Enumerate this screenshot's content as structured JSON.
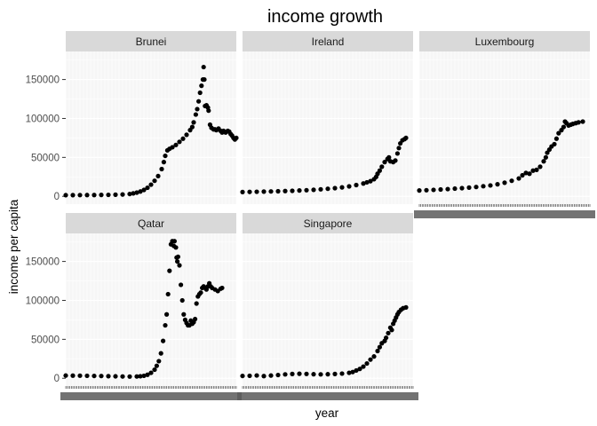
{
  "chart_data": {
    "type": "scatter",
    "title": "income growth",
    "xlabel": "year",
    "ylabel": "income per capita",
    "yticks": [
      0,
      50000,
      100000,
      150000
    ],
    "ytick_labels": [
      "0",
      "50000",
      "100000",
      "150000"
    ],
    "ylim": [
      -10000,
      186000
    ],
    "xlim": [
      1800,
      2040
    ],
    "grid": true,
    "panels": [
      {
        "name": "Brunei",
        "points": [
          [
            1800,
            1500
          ],
          [
            1810,
            1550
          ],
          [
            1820,
            1600
          ],
          [
            1830,
            1650
          ],
          [
            1840,
            1700
          ],
          [
            1850,
            1800
          ],
          [
            1860,
            1900
          ],
          [
            1870,
            2100
          ],
          [
            1880,
            2400
          ],
          [
            1890,
            3000
          ],
          [
            1895,
            3800
          ],
          [
            1900,
            4800
          ],
          [
            1905,
            6200
          ],
          [
            1910,
            8200
          ],
          [
            1915,
            11000
          ],
          [
            1920,
            15000
          ],
          [
            1925,
            20000
          ],
          [
            1930,
            26000
          ],
          [
            1935,
            35000
          ],
          [
            1938,
            44000
          ],
          [
            1940,
            52000
          ],
          [
            1943,
            59000
          ],
          [
            1946,
            61000
          ],
          [
            1950,
            63000
          ],
          [
            1955,
            66000
          ],
          [
            1960,
            70000
          ],
          [
            1965,
            74000
          ],
          [
            1970,
            79000
          ],
          [
            1975,
            85000
          ],
          [
            1978,
            89000
          ],
          [
            1980,
            95000
          ],
          [
            1983,
            105000
          ],
          [
            1985,
            112000
          ],
          [
            1987,
            122000
          ],
          [
            1989,
            133000
          ],
          [
            1991,
            142000
          ],
          [
            1993,
            150000
          ],
          [
            1994,
            166000
          ],
          [
            1995,
            150000
          ],
          [
            1996,
            116000
          ],
          [
            1998,
            117000
          ],
          [
            2000,
            114000
          ],
          [
            2001,
            110000
          ],
          [
            2003,
            92000
          ],
          [
            2005,
            88000
          ],
          [
            2008,
            86000
          ],
          [
            2010,
            86000
          ],
          [
            2012,
            85000
          ],
          [
            2015,
            87000
          ],
          [
            2018,
            84000
          ],
          [
            2020,
            82000
          ],
          [
            2022,
            84000
          ],
          [
            2025,
            82000
          ],
          [
            2028,
            84000
          ],
          [
            2030,
            83000
          ],
          [
            2032,
            80000
          ],
          [
            2034,
            78000
          ],
          [
            2036,
            75000
          ],
          [
            2038,
            73000
          ],
          [
            2040,
            75000
          ]
        ]
      },
      {
        "name": "Ireland",
        "points": [
          [
            1800,
            5500
          ],
          [
            1810,
            5700
          ],
          [
            1820,
            5900
          ],
          [
            1830,
            6100
          ],
          [
            1840,
            6300
          ],
          [
            1850,
            6500
          ],
          [
            1860,
            6800
          ],
          [
            1870,
            7100
          ],
          [
            1880,
            7500
          ],
          [
            1890,
            7900
          ],
          [
            1900,
            8400
          ],
          [
            1910,
            9000
          ],
          [
            1920,
            9700
          ],
          [
            1930,
            10500
          ],
          [
            1940,
            11500
          ],
          [
            1950,
            12800
          ],
          [
            1960,
            14500
          ],
          [
            1970,
            16500
          ],
          [
            1975,
            18000
          ],
          [
            1980,
            19500
          ],
          [
            1985,
            22000
          ],
          [
            1988,
            25000
          ],
          [
            1990,
            29000
          ],
          [
            1993,
            33000
          ],
          [
            1996,
            38000
          ],
          [
            2000,
            44000
          ],
          [
            2004,
            48000
          ],
          [
            2006,
            50000
          ],
          [
            2008,
            45000
          ],
          [
            2012,
            44000
          ],
          [
            2015,
            46000
          ],
          [
            2018,
            55000
          ],
          [
            2020,
            62000
          ],
          [
            2022,
            68000
          ],
          [
            2025,
            72000
          ],
          [
            2028,
            73500
          ],
          [
            2030,
            75000
          ]
        ]
      },
      {
        "name": "Luxembourg",
        "points": [
          [
            1800,
            7500
          ],
          [
            1810,
            7900
          ],
          [
            1820,
            8300
          ],
          [
            1830,
            8800
          ],
          [
            1840,
            9300
          ],
          [
            1850,
            9900
          ],
          [
            1860,
            10500
          ],
          [
            1870,
            11200
          ],
          [
            1880,
            12000
          ],
          [
            1890,
            13000
          ],
          [
            1900,
            14000
          ],
          [
            1910,
            15500
          ],
          [
            1920,
            17500
          ],
          [
            1930,
            20000
          ],
          [
            1940,
            23000
          ],
          [
            1945,
            27000
          ],
          [
            1950,
            30000
          ],
          [
            1955,
            29000
          ],
          [
            1960,
            33000
          ],
          [
            1965,
            34000
          ],
          [
            1970,
            38000
          ],
          [
            1975,
            45000
          ],
          [
            1978,
            50000
          ],
          [
            1980,
            56000
          ],
          [
            1983,
            60000
          ],
          [
            1986,
            64000
          ],
          [
            1990,
            67000
          ],
          [
            1993,
            74000
          ],
          [
            1996,
            81000
          ],
          [
            2000,
            85000
          ],
          [
            2003,
            89000
          ],
          [
            2005,
            96000
          ],
          [
            2007,
            94000
          ],
          [
            2010,
            91000
          ],
          [
            2013,
            92000
          ],
          [
            2016,
            93000
          ],
          [
            2020,
            94000
          ],
          [
            2024,
            95000
          ],
          [
            2030,
            96000
          ]
        ]
      },
      {
        "name": "Qatar",
        "points": [
          [
            1800,
            3500
          ],
          [
            1810,
            3400
          ],
          [
            1820,
            3300
          ],
          [
            1830,
            3200
          ],
          [
            1840,
            3000
          ],
          [
            1850,
            2900
          ],
          [
            1860,
            2700
          ],
          [
            1870,
            2500
          ],
          [
            1880,
            2300
          ],
          [
            1890,
            2200
          ],
          [
            1900,
            2300
          ],
          [
            1905,
            2600
          ],
          [
            1910,
            3200
          ],
          [
            1915,
            4500
          ],
          [
            1920,
            7000
          ],
          [
            1925,
            11000
          ],
          [
            1928,
            16000
          ],
          [
            1931,
            22000
          ],
          [
            1934,
            32000
          ],
          [
            1937,
            48000
          ],
          [
            1940,
            68000
          ],
          [
            1942,
            82000
          ],
          [
            1944,
            108000
          ],
          [
            1946,
            138000
          ],
          [
            1948,
            172000
          ],
          [
            1950,
            176000
          ],
          [
            1952,
            170000
          ],
          [
            1953,
            176000
          ],
          [
            1955,
            168000
          ],
          [
            1956,
            155000
          ],
          [
            1957,
            150000
          ],
          [
            1958,
            156000
          ],
          [
            1960,
            145000
          ],
          [
            1962,
            120000
          ],
          [
            1964,
            100000
          ],
          [
            1966,
            82000
          ],
          [
            1968,
            75000
          ],
          [
            1970,
            71000
          ],
          [
            1972,
            68000
          ],
          [
            1974,
            68000
          ],
          [
            1976,
            74000
          ],
          [
            1978,
            70000
          ],
          [
            1980,
            72000
          ],
          [
            1982,
            76000
          ],
          [
            1984,
            96000
          ],
          [
            1986,
            105000
          ],
          [
            1988,
            108000
          ],
          [
            1990,
            110000
          ],
          [
            1992,
            116000
          ],
          [
            1994,
            118000
          ],
          [
            1996,
            116000
          ],
          [
            1998,
            114000
          ],
          [
            2000,
            118000
          ],
          [
            2002,
            122000
          ],
          [
            2004,
            118000
          ],
          [
            2006,
            116000
          ],
          [
            2010,
            114000
          ],
          [
            2014,
            112000
          ],
          [
            2018,
            115000
          ],
          [
            2020,
            116000
          ]
        ]
      },
      {
        "name": "Singapore",
        "points": [
          [
            1800,
            3000
          ],
          [
            1810,
            3200
          ],
          [
            1820,
            3600
          ],
          [
            1830,
            2800
          ],
          [
            1840,
            3500
          ],
          [
            1850,
            4200
          ],
          [
            1860,
            5000
          ],
          [
            1870,
            5500
          ],
          [
            1880,
            5800
          ],
          [
            1890,
            5600
          ],
          [
            1900,
            5200
          ],
          [
            1910,
            5000
          ],
          [
            1920,
            5200
          ],
          [
            1930,
            5500
          ],
          [
            1940,
            6000
          ],
          [
            1950,
            7000
          ],
          [
            1955,
            8000
          ],
          [
            1960,
            10000
          ],
          [
            1965,
            12000
          ],
          [
            1970,
            15000
          ],
          [
            1975,
            19000
          ],
          [
            1980,
            24000
          ],
          [
            1985,
            28000
          ],
          [
            1990,
            35000
          ],
          [
            1993,
            40000
          ],
          [
            1996,
            45000
          ],
          [
            2000,
            48000
          ],
          [
            2002,
            52000
          ],
          [
            2005,
            58000
          ],
          [
            2008,
            65000
          ],
          [
            2010,
            62000
          ],
          [
            2012,
            70000
          ],
          [
            2014,
            74000
          ],
          [
            2016,
            78000
          ],
          [
            2018,
            82000
          ],
          [
            2020,
            85000
          ],
          [
            2023,
            88000
          ],
          [
            2026,
            90000
          ],
          [
            2030,
            91000
          ]
        ]
      }
    ]
  }
}
